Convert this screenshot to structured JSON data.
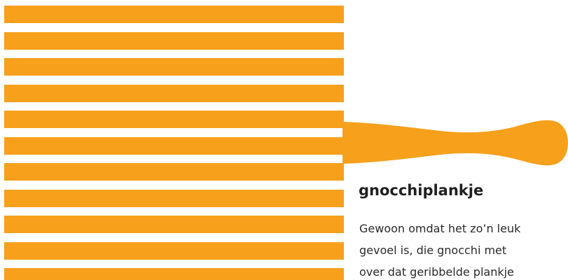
{
  "colors": {
    "accent": "#f7a01c",
    "background": "#ffffff",
    "text": "#1f1f1f"
  },
  "illustration": {
    "subject": "gnocchi-board",
    "rib_count": 11
  },
  "article": {
    "title": "gnocchiplankje",
    "body_lines": [
      "Gewoon omdat het zo’n leuk",
      "gevoel is, die gnocchi met",
      "over dat geribbelde plankje"
    ]
  }
}
